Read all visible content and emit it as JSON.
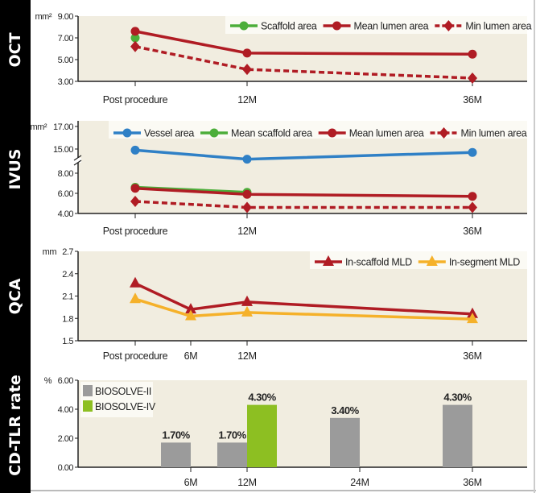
{
  "colors": {
    "background": "#f1ede0",
    "mean_lumen": "#b01c24",
    "scaffold": "#4cae3a",
    "vessel": "#2f80c6",
    "in_segment": "#f5b12a",
    "biosolve_ii": "#9b9b9b",
    "biosolve_iv": "#8dbf22"
  },
  "chart_data": [
    {
      "id": "oct",
      "type": "line",
      "panel_label": "OCT",
      "ylabel": "mm²",
      "ylim": [
        3,
        9
      ],
      "yticks": [
        "3.00",
        "5.00",
        "7.00",
        "9.00"
      ],
      "ytick_values": [
        3,
        5,
        7,
        9
      ],
      "categories": [
        "Post procedure",
        "12M",
        "36M"
      ],
      "legend": "top-right",
      "series": [
        {
          "name": "Scaffold area",
          "color": "#4cae3a",
          "marker": "circle",
          "dashed": false,
          "values": [
            7.0,
            null,
            null
          ]
        },
        {
          "name": "Mean lumen area",
          "color": "#b01c24",
          "marker": "circle",
          "dashed": false,
          "values": [
            7.6,
            5.6,
            5.5
          ]
        },
        {
          "name": "Min lumen area",
          "color": "#b01c24",
          "marker": "diamond",
          "dashed": true,
          "values": [
            6.2,
            4.1,
            3.3
          ]
        }
      ]
    },
    {
      "id": "ivus",
      "type": "line",
      "panel_label": "IVUS",
      "ylabel": "mm²",
      "ylim": [
        4,
        17
      ],
      "axis_break": [
        8.5,
        14
      ],
      "yticks": [
        "4.00",
        "6.00",
        "8.00",
        "15.00",
        "17.00"
      ],
      "ytick_values": [
        4,
        6,
        8,
        15,
        17
      ],
      "categories": [
        "Post procedure",
        "12M",
        "36M"
      ],
      "legend": "top-right",
      "series": [
        {
          "name": "Vessel area",
          "color": "#2f80c6",
          "marker": "circle",
          "dashed": false,
          "values": [
            14.9,
            14.1,
            14.7
          ]
        },
        {
          "name": "Mean scaffold area",
          "color": "#4cae3a",
          "marker": "circle",
          "dashed": false,
          "values": [
            6.6,
            6.1,
            null
          ]
        },
        {
          "name": "Mean lumen area",
          "color": "#b01c24",
          "marker": "circle",
          "dashed": false,
          "values": [
            6.5,
            5.9,
            5.7
          ]
        },
        {
          "name": "Min lumen area",
          "color": "#b01c24",
          "marker": "diamond",
          "dashed": true,
          "values": [
            5.2,
            4.6,
            4.6
          ]
        }
      ]
    },
    {
      "id": "qca",
      "type": "line",
      "panel_label": "QCA",
      "ylabel": "mm",
      "ylim": [
        1.5,
        2.7
      ],
      "yticks": [
        "1.5",
        "1.8",
        "2.1",
        "2.4",
        "2.7"
      ],
      "ytick_values": [
        1.5,
        1.8,
        2.1,
        2.4,
        2.7
      ],
      "categories": [
        "Post procedure",
        "6M",
        "12M",
        "36M"
      ],
      "legend": "top-right",
      "series": [
        {
          "name": "In-scaffold MLD",
          "color": "#b01c24",
          "marker": "triangle",
          "dashed": false,
          "values": [
            2.27,
            1.92,
            2.02,
            1.86
          ]
        },
        {
          "name": "In-segment MLD",
          "color": "#f5b12a",
          "marker": "triangle",
          "dashed": false,
          "values": [
            2.06,
            1.83,
            1.88,
            1.79
          ]
        }
      ]
    },
    {
      "id": "cdtlr",
      "type": "bar",
      "panel_label": "CD-TLR rate",
      "ylabel": "%",
      "ylim": [
        0,
        6
      ],
      "yticks": [
        "0.00",
        "2.00",
        "4.00",
        "6.00"
      ],
      "ytick_values": [
        0,
        2,
        4,
        6
      ],
      "categories": [
        "6M",
        "12M",
        "24M",
        "36M"
      ],
      "legend": "top-left",
      "series": [
        {
          "name": "BIOSOLVE-II",
          "color": "#9b9b9b",
          "values": [
            1.7,
            1.7,
            3.4,
            4.3
          ],
          "labels": [
            "1.70%",
            "1.70%",
            "3.40%",
            "4.30%"
          ]
        },
        {
          "name": "BIOSOLVE-IV",
          "color": "#8dbf22",
          "values": [
            null,
            4.3,
            null,
            null
          ],
          "labels": [
            null,
            "4.30%",
            null,
            null
          ]
        }
      ]
    }
  ]
}
